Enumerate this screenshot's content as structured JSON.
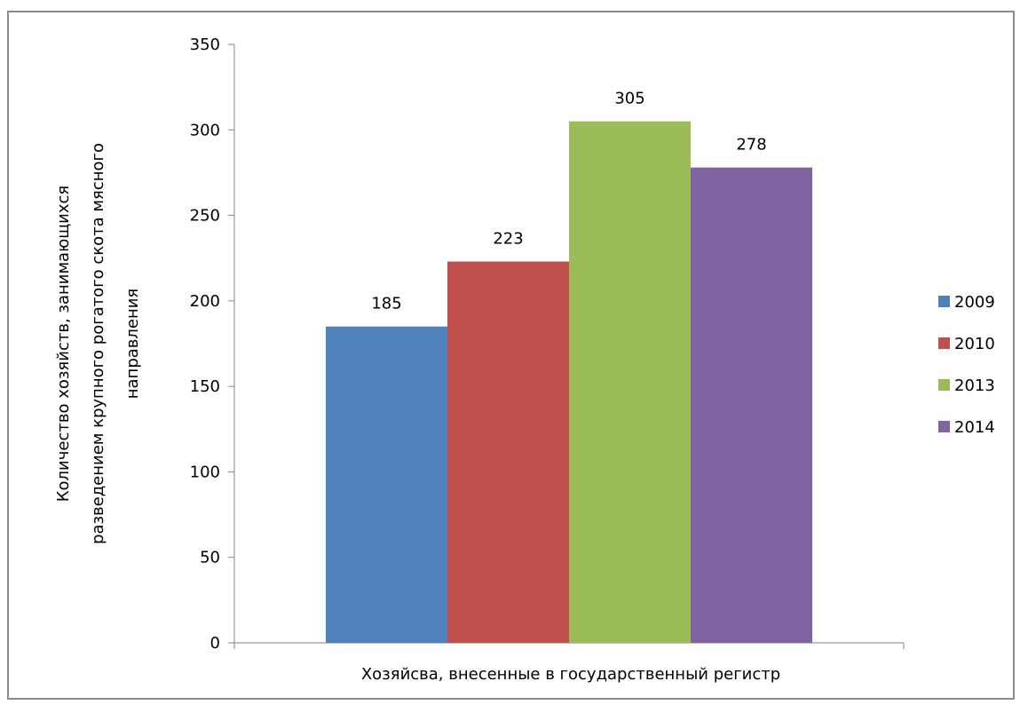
{
  "chart_data": {
    "type": "bar",
    "categories": [
      "Хозяйсва, внесенные в государственный регистр"
    ],
    "series": [
      {
        "name": "2009",
        "values": [
          185
        ],
        "color": "#4f81bd"
      },
      {
        "name": "2010",
        "values": [
          223
        ],
        "color": "#c0504d"
      },
      {
        "name": "2013",
        "values": [
          305
        ],
        "color": "#9bbb59"
      },
      {
        "name": "2014",
        "values": [
          278
        ],
        "color": "#8064a2"
      }
    ],
    "title": "",
    "xlabel": "Хозяйсва, внесенные в государственный регистр",
    "ylabel": [
      "Количество хозяйств, занимающихся",
      "разведением крупного рогатого скота мясного",
      "направления"
    ],
    "ylim": [
      0,
      350
    ],
    "yticks": [
      0,
      50,
      100,
      150,
      200,
      250,
      300,
      350
    ],
    "grid": false,
    "legend": "right",
    "data_labels": true
  }
}
